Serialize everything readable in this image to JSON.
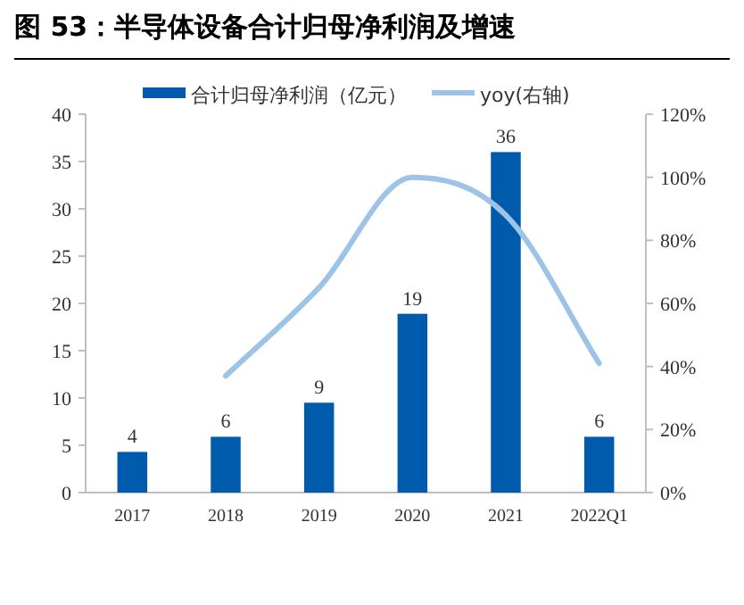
{
  "chart_data": {
    "type": "bar",
    "title": "图 53：半导体设备合计归母净利润及增速",
    "categories": [
      "2017",
      "2018",
      "2019",
      "2020",
      "2021",
      "2022Q1"
    ],
    "series": [
      {
        "name": "合计归母净利润（亿元）",
        "color": "#005bac",
        "values": [
          4.3,
          5.9,
          9.5,
          18.9,
          36.0,
          5.9
        ],
        "value_labels": [
          "4",
          "6",
          "9",
          "19",
          "36",
          "6"
        ]
      },
      {
        "name": "yoy(右轴)",
        "type": "line",
        "axis": "y2",
        "color": "#9dc3e6",
        "values": [
          null,
          37,
          65,
          100,
          88,
          41
        ]
      }
    ],
    "ylim": [
      0,
      40
    ],
    "yticks": [
      0,
      5,
      10,
      15,
      20,
      25,
      30,
      35,
      40
    ],
    "y2lim": [
      0,
      120
    ],
    "y2ticks": [
      {
        "value": 0,
        "label": "0%"
      },
      {
        "value": 20,
        "label": "20%"
      },
      {
        "value": 40,
        "label": "40%"
      },
      {
        "value": 60,
        "label": "60%"
      },
      {
        "value": 80,
        "label": "80%"
      },
      {
        "value": 100,
        "label": "100%"
      },
      {
        "value": 120,
        "label": "120%"
      }
    ],
    "legend": "top",
    "grid": false,
    "marker": "none",
    "line_style": "solid"
  }
}
